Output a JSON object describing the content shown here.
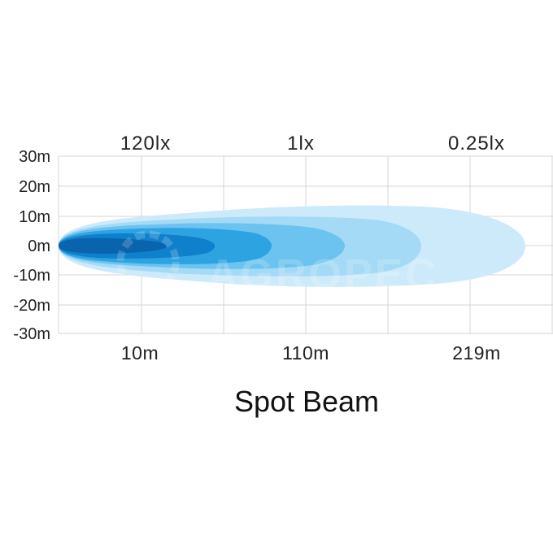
{
  "title": "Spot Beam",
  "top_labels": [
    "120lx",
    "1lx",
    "0.25lx"
  ],
  "bottom_labels": [
    "10m",
    "110m",
    "219m"
  ],
  "y_ticks": [
    "30m",
    "20m",
    "10m",
    "0m",
    "-10m",
    "-20m",
    "-30m"
  ],
  "watermark": "AGROPEC",
  "colors": {
    "zone_outer": "#cdeafa",
    "zone_2": "#a4daf6",
    "zone_3": "#6cc3ef",
    "zone_4": "#2ea3e2",
    "zone_core": "#0f80cc",
    "zone_hot": "#0a63ad"
  }
}
